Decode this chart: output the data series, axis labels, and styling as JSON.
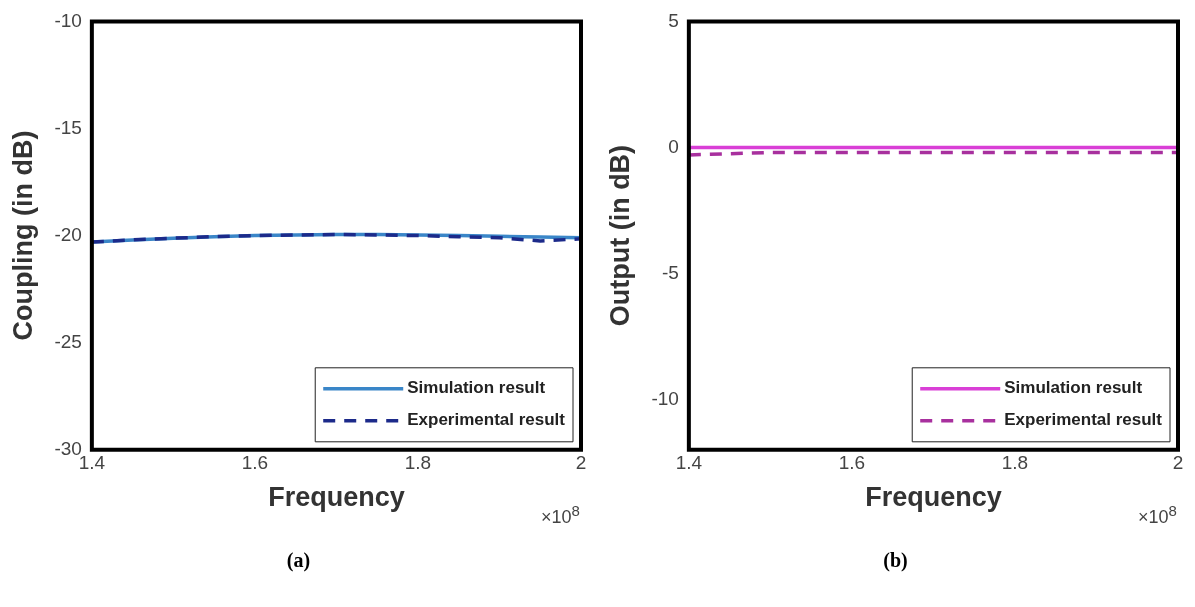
{
  "chart_data": [
    {
      "type": "line",
      "xlabel": "Frequency",
      "ylabel": "Coupling (in dB)",
      "xlim": [
        1.4,
        2
      ],
      "xticks": [
        1.4,
        1.6,
        1.8,
        2
      ],
      "ylim": [
        -30,
        -10
      ],
      "yticks": [
        -30,
        -25,
        -20,
        -15,
        -10
      ],
      "grid": false,
      "legend": "bottom right",
      "marker": "none",
      "series": [
        {
          "name": "Simulation result",
          "color": "#3a86c8",
          "line_style": "solid",
          "x": [
            1.4,
            1.45,
            1.5,
            1.55,
            1.6,
            1.65,
            1.7,
            1.75,
            1.8,
            1.85,
            1.9,
            1.95,
            2
          ],
          "values": [
            -20.3,
            -20.2,
            -20.12,
            -20.05,
            -20.0,
            -19.97,
            -19.95,
            -19.95,
            -19.97,
            -20.0,
            -20.03,
            -20.07,
            -20.1
          ]
        },
        {
          "name": "Experimental result",
          "color": "#1c2a8a",
          "line_style": "dashed",
          "x": [
            1.4,
            1.45,
            1.5,
            1.55,
            1.6,
            1.65,
            1.7,
            1.75,
            1.8,
            1.85,
            1.9,
            1.95,
            2
          ],
          "values": [
            -20.3,
            -20.2,
            -20.12,
            -20.05,
            -20.0,
            -19.97,
            -19.95,
            -19.97,
            -20.0,
            -20.05,
            -20.1,
            -20.25,
            -20.15
          ]
        }
      ],
      "annotations": [
        "×10$^{8}$",
        "(a)"
      ]
    },
    {
      "type": "line",
      "xlabel": "Frequency",
      "ylabel": "Output (in dB)",
      "xlim": [
        1.4,
        2
      ],
      "xticks": [
        1.4,
        1.6,
        1.8,
        2
      ],
      "ylim": [
        -12,
        5
      ],
      "yticks": [
        -10,
        -5,
        0,
        5
      ],
      "grid": false,
      "legend": "bottom right",
      "marker": "none",
      "series": [
        {
          "name": "Simulation result",
          "color": "#d93fd6",
          "line_style": "solid",
          "x": [
            1.4,
            1.5,
            1.6,
            1.7,
            1.8,
            1.9,
            2
          ],
          "values": [
            0,
            0,
            0,
            0,
            0,
            0,
            0
          ]
        },
        {
          "name": "Experimental result",
          "color": "#a8309e",
          "line_style": "dashed",
          "x": [
            1.4,
            1.45,
            1.5,
            1.6,
            1.7,
            1.8,
            1.9,
            2
          ],
          "values": [
            -0.3,
            -0.25,
            -0.2,
            -0.2,
            -0.2,
            -0.2,
            -0.2,
            -0.2
          ]
        }
      ],
      "annotations": [
        "×10$^{8}$",
        "(b)"
      ]
    }
  ]
}
